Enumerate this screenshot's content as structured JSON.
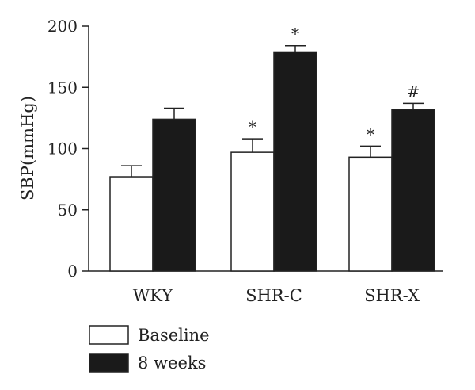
{
  "chart_data": {
    "type": "bar",
    "title": "",
    "xlabel": "",
    "ylabel": "SBP(mmHg)",
    "ylim": [
      0,
      200
    ],
    "yticks": [
      0,
      50,
      100,
      150,
      200
    ],
    "grid": false,
    "legend_position": "bottom-left",
    "categories": [
      "WKY",
      "SHR-C",
      "SHR-X"
    ],
    "series": [
      {
        "name": "Baseline",
        "color": "#ffffff",
        "values": [
          77,
          97,
          93
        ],
        "errors": [
          9,
          11,
          9
        ],
        "annotations": [
          "",
          "*",
          "*"
        ]
      },
      {
        "name": "8 weeks",
        "color": "#1a1a1a",
        "values": [
          124,
          179,
          132
        ],
        "errors": [
          9,
          5,
          5
        ],
        "annotations": [
          "",
          "*",
          "#"
        ]
      }
    ]
  }
}
